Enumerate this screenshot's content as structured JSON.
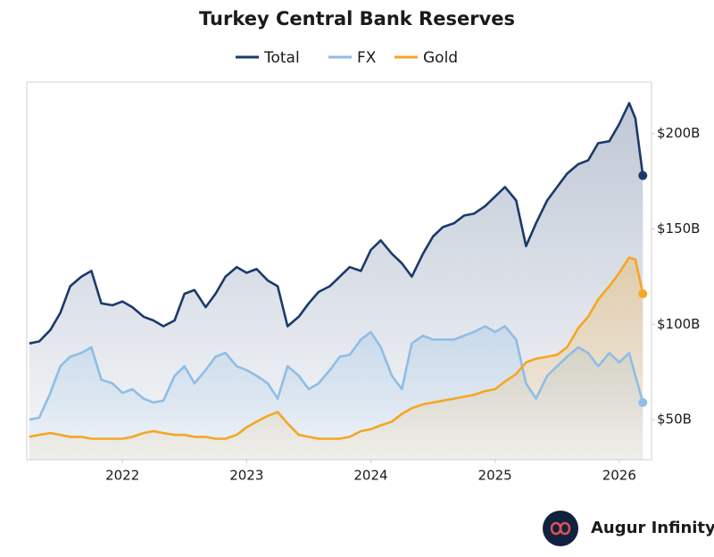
{
  "chart_data": {
    "type": "line",
    "title": "Turkey Central Bank Reserves",
    "x": [
      2021.25,
      2021.33,
      2021.42,
      2021.5,
      2021.58,
      2021.67,
      2021.75,
      2021.83,
      2021.92,
      2022.0,
      2022.08,
      2022.17,
      2022.25,
      2022.33,
      2022.42,
      2022.5,
      2022.58,
      2022.67,
      2022.75,
      2022.83,
      2022.92,
      2023.0,
      2023.08,
      2023.17,
      2023.25,
      2023.33,
      2023.42,
      2023.5,
      2023.58,
      2023.67,
      2023.75,
      2023.83,
      2023.92,
      2024.0,
      2024.08,
      2024.17,
      2024.25,
      2024.33,
      2024.42,
      2024.5,
      2024.58,
      2024.67,
      2024.75,
      2024.83,
      2024.92,
      2025.0,
      2025.08,
      2025.17,
      2025.25,
      2025.33,
      2025.42,
      2025.5,
      2025.58,
      2025.67,
      2025.75,
      2025.83,
      2025.92,
      2026.0,
      2026.08,
      2026.13,
      2026.19
    ],
    "series": [
      {
        "name": "Total",
        "color": "#1b3a6b",
        "values": [
          90,
          91,
          97,
          106,
          120,
          125,
          128,
          111,
          110,
          112,
          109,
          104,
          102,
          99,
          102,
          116,
          118,
          109,
          116,
          125,
          130,
          127,
          129,
          123,
          120,
          99,
          104,
          111,
          117,
          120,
          125,
          130,
          128,
          139,
          144,
          137,
          132,
          125,
          137,
          146,
          151,
          153,
          157,
          158,
          162,
          167,
          172,
          165,
          141,
          153,
          165,
          172,
          179,
          184,
          186,
          195,
          196,
          205,
          216,
          208,
          178
        ]
      },
      {
        "name": "FX",
        "color": "#8fbde6",
        "values": [
          50,
          51,
          64,
          78,
          83,
          85,
          88,
          71,
          69,
          64,
          66,
          61,
          59,
          60,
          73,
          78,
          69,
          76,
          83,
          85,
          78,
          76,
          73,
          69,
          61,
          78,
          73,
          66,
          69,
          76,
          83,
          84,
          92,
          96,
          88,
          73,
          66,
          90,
          94,
          92,
          92,
          92,
          94,
          96,
          99,
          96,
          99,
          92,
          69,
          61,
          73,
          78,
          83,
          88,
          85,
          78,
          85,
          80,
          85,
          73,
          59
        ]
      },
      {
        "name": "Gold",
        "color": "#f5a623",
        "values": [
          41,
          42,
          43,
          42,
          41,
          41,
          40,
          40,
          40,
          40,
          41,
          43,
          44,
          43,
          42,
          42,
          41,
          41,
          40,
          40,
          42,
          46,
          49,
          52,
          54,
          48,
          42,
          41,
          40,
          40,
          40,
          41,
          44,
          45,
          47,
          49,
          53,
          56,
          58,
          59,
          60,
          61,
          62,
          63,
          65,
          66,
          70,
          74,
          80,
          82,
          83,
          84,
          88,
          98,
          104,
          113,
          120,
          127,
          135,
          134,
          116
        ]
      }
    ],
    "xlim": [
      2021.23,
      2026.26
    ],
    "xticks": [
      2022,
      2023,
      2024,
      2025,
      2026
    ],
    "ylim": [
      29,
      227
    ],
    "yticks": [
      {
        "value": 50,
        "label": "$50B"
      },
      {
        "value": 100,
        "label": "$100B"
      },
      {
        "value": 150,
        "label": "$150B"
      },
      {
        "value": 200,
        "label": "$200B"
      }
    ],
    "legend": "top"
  },
  "footer": {
    "brand": "Augur Infinity"
  }
}
